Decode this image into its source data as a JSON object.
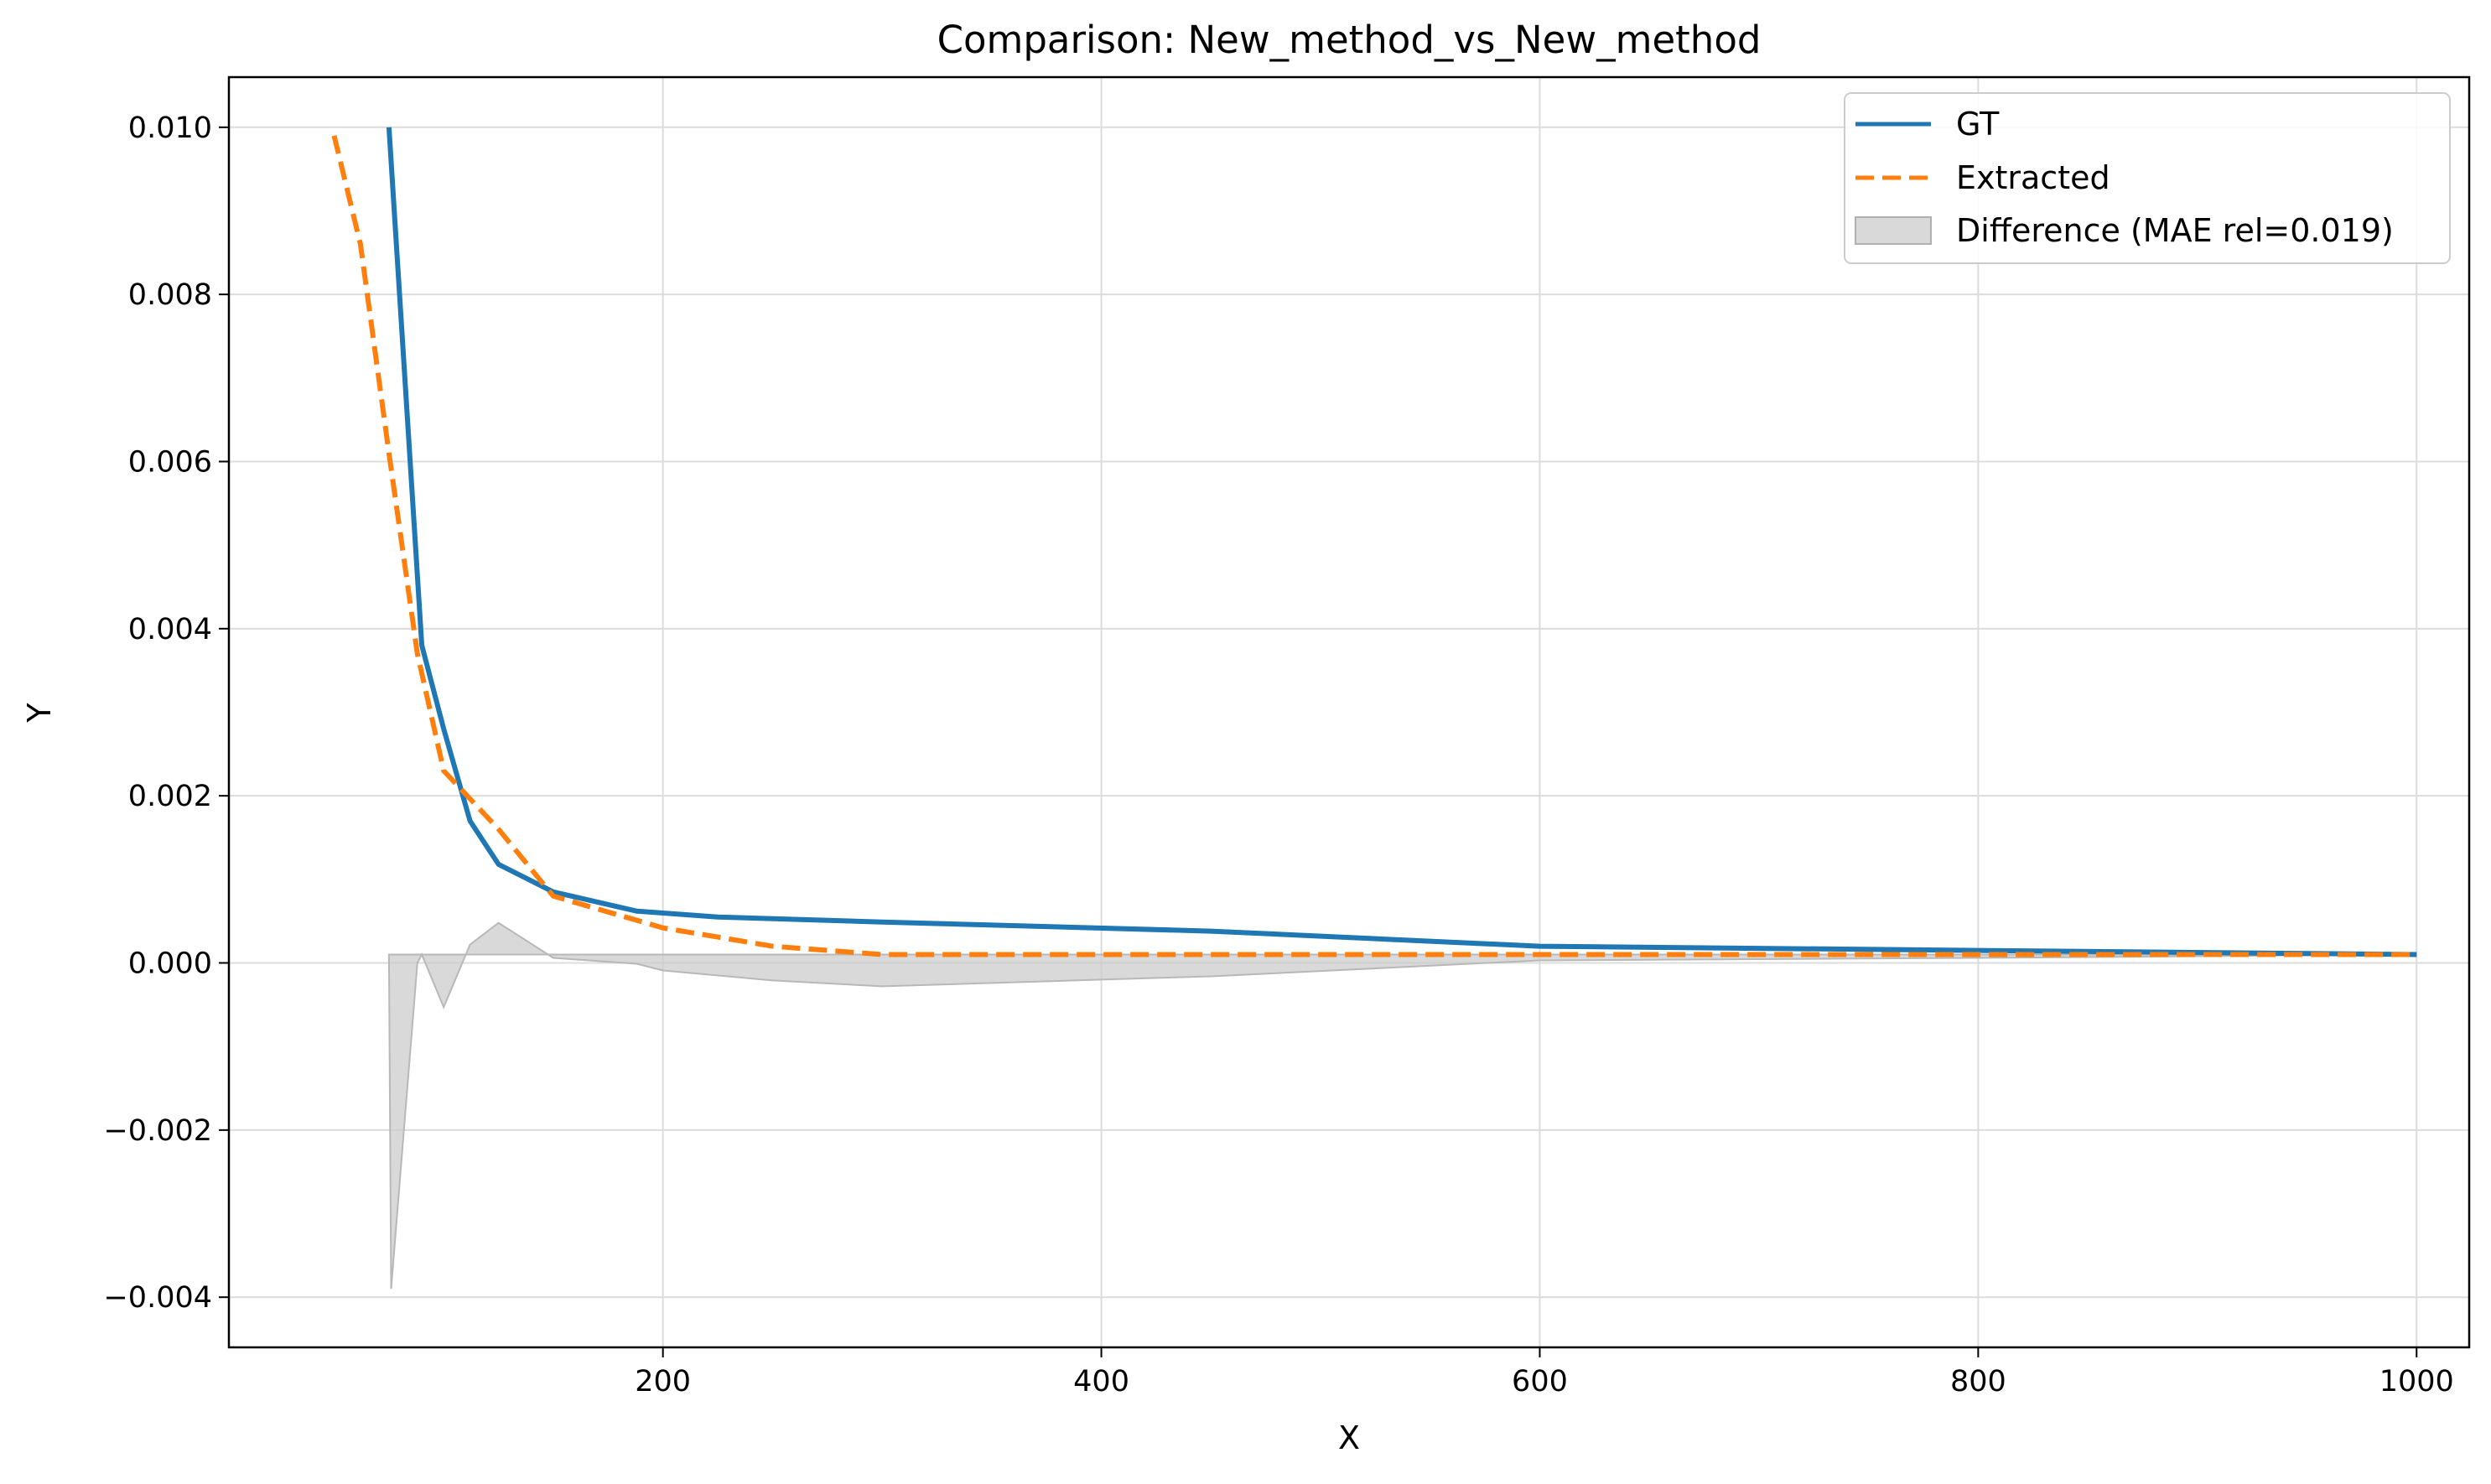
{
  "chart_data": {
    "type": "line",
    "title": "Comparison: New_method_vs_New_method",
    "xlabel": "X",
    "ylabel": "Y",
    "xlim": [
      2,
      1024
    ],
    "ylim": [
      -0.0046,
      0.0106
    ],
    "grid": true,
    "legend_position": "top-right",
    "x_ticks": [
      200,
      400,
      600,
      800,
      1000
    ],
    "x_tick_labels": [
      "200",
      "400",
      "600",
      "800",
      "1000"
    ],
    "y_ticks": [
      0.01,
      0.008,
      0.006,
      0.004,
      0.002,
      0.0,
      -0.002,
      -0.004
    ],
    "y_tick_labels": [
      "0.010",
      "0.008",
      "0.006",
      "0.004",
      "0.002",
      "0.000",
      "−0.002",
      "−0.004"
    ],
    "series": [
      {
        "name": "GT",
        "style": "solid",
        "color": "#1f77b4",
        "x": [
          75,
          90,
          100,
          112,
          125,
          150,
          188,
          225,
          300,
          450,
          600,
          800,
          1000
        ],
        "y": [
          0.01,
          0.0038,
          0.0028,
          0.0017,
          0.00118,
          0.00085,
          0.00062,
          0.00055,
          0.00049,
          0.00038,
          0.0002,
          0.00015,
          0.0001
        ]
      },
      {
        "name": "Extracted",
        "style": "dashed",
        "color": "#ff7f0e",
        "x": [
          50,
          62,
          75,
          88,
          100,
          125,
          150,
          200,
          250,
          300,
          400,
          500,
          600,
          700,
          800,
          900,
          1000
        ],
        "y": [
          0.0099,
          0.0086,
          0.0061,
          0.0037,
          0.0023,
          0.0016,
          0.0008,
          0.00042,
          0.0002,
          0.0001,
          0.0001,
          0.0001,
          0.0001,
          0.0001,
          0.0001,
          0.0001,
          0.0001
        ]
      }
    ],
    "fill": {
      "name": "Difference (MAE rel=0.019)",
      "color": "#cccccc",
      "baseline": 0.0001,
      "x": [
        75,
        76,
        88,
        90,
        100,
        112,
        125,
        150,
        188,
        200,
        250,
        300,
        400,
        450,
        600,
        800,
        1000
      ],
      "y": [
        0.0001,
        -0.0039,
        0.0,
        0.0001,
        -0.00053,
        0.00022,
        0.00048,
        6e-05,
        -1e-05,
        -9e-05,
        -0.00021,
        -0.00028,
        -0.0002,
        -0.00016,
        3e-05,
        6e-05,
        0.0001
      ]
    }
  }
}
